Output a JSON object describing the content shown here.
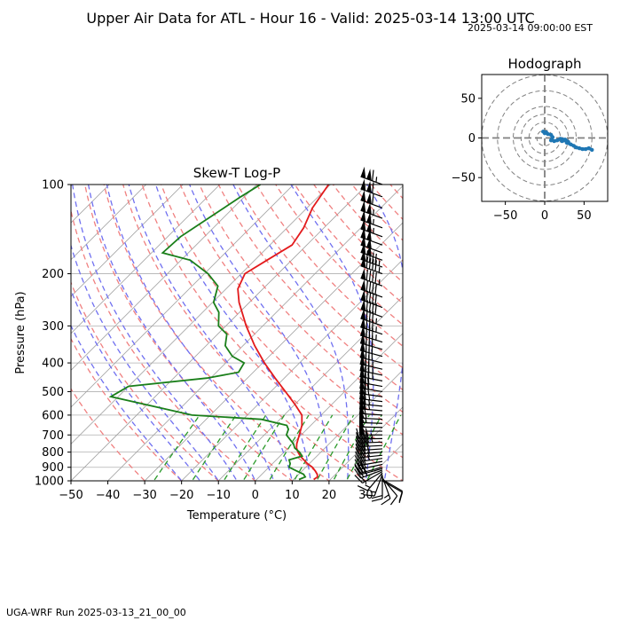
{
  "header": {
    "title": "Upper Air Data for ATL - Hour 16 - Valid: 2025-03-14 13:00 UTC",
    "local_time": "2025-03-14 09:00:00 EST"
  },
  "footer": {
    "run_label": "UGA-WRF Run 2025-03-13_21_00_00"
  },
  "colors": {
    "temperature": "#e31a1c",
    "dewpoint": "#1a7f1a",
    "dry_adiabat": "#f08080",
    "moist_adiabat": "#7070f0",
    "mixing_ratio": "#2a9a2a",
    "isotherm": "#a0a0a0",
    "hodograph": "#1f77b4"
  },
  "chart_data": [
    {
      "type": "line",
      "title": "Skew-T Log-P",
      "xlabel": "Temperature (°C)",
      "ylabel": "Pressure (hPa)",
      "xlim": [
        -50,
        40
      ],
      "ylim": [
        1000,
        100
      ],
      "y_scale": "log",
      "grid": true,
      "x_ticks": [
        "−50",
        "−40",
        "−30",
        "−20",
        "−10",
        "0",
        "10",
        "20",
        "30"
      ],
      "y_ticks": [
        "100",
        "200",
        "300",
        "400",
        "500",
        "600",
        "700",
        "800",
        "900",
        "1000"
      ],
      "y_tick_values": [
        100,
        200,
        300,
        400,
        500,
        600,
        700,
        800,
        900,
        1000
      ],
      "series": [
        {
          "key": "temperature",
          "pressure": [
            990,
            970,
            950,
            925,
            900,
            875,
            850,
            825,
            800,
            775,
            750,
            700,
            650,
            600,
            550,
            500,
            450,
            400,
            350,
            300,
            250,
            225,
            200,
            180,
            160,
            140,
            120,
            100
          ],
          "values": [
            15.5,
            15.8,
            15.0,
            13.5,
            11.8,
            9.5,
            7.5,
            5.5,
            3.8,
            2.3,
            1.2,
            -0.5,
            -2.4,
            -5.2,
            -10.2,
            -16.0,
            -22.5,
            -29.5,
            -36.8,
            -44.5,
            -52.8,
            -56.8,
            -59.0,
            -56.7,
            -54.0,
            -55.5,
            -58.5,
            -60.5
          ]
        },
        {
          "key": "dewpoint",
          "pressure": [
            990,
            970,
            950,
            925,
            900,
            875,
            850,
            825,
            800,
            775,
            750,
            700,
            670,
            650,
            620,
            600,
            560,
            520,
            480,
            450,
            430,
            400,
            380,
            350,
            320,
            300,
            270,
            250,
            220,
            200,
            180,
            170,
            150,
            130,
            110,
            100
          ],
          "values": [
            11.5,
            12.5,
            11.3,
            8.4,
            5.5,
            4.8,
            3.5,
            6.0,
            4.2,
            1.8,
            0.3,
            -4.0,
            -5.0,
            -6.5,
            -15.0,
            -35.0,
            -48.0,
            -62.0,
            -60.0,
            -41.0,
            -34.0,
            -35.0,
            -40.0,
            -44.8,
            -47.5,
            -52.0,
            -55.6,
            -59.7,
            -63.0,
            -69.0,
            -77.5,
            -87.0,
            -86.5,
            -84.0,
            -81.0,
            -79.0
          ]
        }
      ]
    },
    {
      "type": "scatter",
      "title": "Hodograph",
      "xlim": [
        -80,
        80
      ],
      "ylim": [
        -80,
        80
      ],
      "x_ticks": [
        "−50",
        "0",
        "50"
      ],
      "y_ticks": [
        "50",
        "0",
        "−50"
      ],
      "rings": [
        10,
        20,
        30,
        40,
        60,
        80
      ],
      "u": [
        0,
        -2,
        2,
        4,
        8,
        10,
        8,
        9,
        12,
        16,
        20,
        26,
        22,
        27,
        30,
        28,
        33,
        37,
        40,
        44,
        48,
        52,
        56,
        60
      ],
      "v": [
        6,
        8,
        7,
        5,
        4,
        1,
        -3,
        -2,
        -4,
        -3,
        -1,
        -2,
        -4,
        -3,
        -5,
        -6,
        -8,
        -10,
        -12,
        -13,
        -14,
        -14,
        -13,
        -15
      ]
    }
  ],
  "wind_barbs": {
    "pressure": [
      1000,
      990,
      980,
      970,
      960,
      950,
      940,
      930,
      920,
      910,
      900,
      880,
      860,
      840,
      820,
      800,
      780,
      760,
      740,
      720,
      700,
      680,
      660,
      640,
      620,
      600,
      580,
      560,
      540,
      520,
      500,
      480,
      460,
      440,
      420,
      400,
      380,
      360,
      340,
      320,
      300,
      280,
      260,
      240,
      220,
      200,
      190,
      180,
      170,
      160,
      150,
      140,
      130,
      120,
      110,
      100
    ],
    "speed_kt": [
      10,
      10,
      12,
      15,
      20,
      15,
      15,
      20,
      25,
      30,
      30,
      30,
      30,
      35,
      35,
      35,
      40,
      40,
      45,
      45,
      50,
      50,
      50,
      55,
      55,
      60,
      65,
      65,
      65,
      70,
      70,
      70,
      75,
      75,
      75,
      80,
      80,
      80,
      85,
      85,
      85,
      90,
      90,
      90,
      95,
      95,
      95,
      100,
      100,
      100,
      105,
      105,
      105,
      110,
      110,
      115
    ],
    "direction_deg": [
      120,
      120,
      140,
      160,
      180,
      200,
      220,
      240,
      250,
      255,
      255,
      258,
      260,
      262,
      264,
      265,
      266,
      267,
      268,
      269,
      270,
      270,
      271,
      272,
      273,
      274,
      275,
      276,
      277,
      278,
      279,
      280,
      281,
      282,
      283,
      284,
      285,
      286,
      287,
      288,
      289,
      290,
      290,
      290,
      290,
      290,
      290,
      290,
      290,
      290,
      290,
      290,
      290,
      290,
      290,
      290
    ]
  }
}
